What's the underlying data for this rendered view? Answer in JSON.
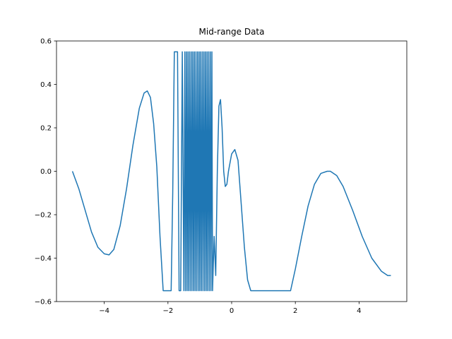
{
  "chart_data": {
    "type": "line",
    "title": "Mid-range Data",
    "xlabel": "",
    "ylabel": "",
    "xlim": [
      -5.5,
      5.5
    ],
    "ylim": [
      -0.6,
      0.6
    ],
    "xticks": [
      -4,
      -2,
      0,
      2,
      4
    ],
    "xtick_labels": [
      "−4",
      "−2",
      "0",
      "2",
      "4"
    ],
    "yticks": [
      -0.6,
      -0.4,
      -0.2,
      0.0,
      0.2,
      0.4,
      0.6
    ],
    "ytick_labels": [
      "−0.6",
      "−0.4",
      "−0.2",
      "0.0",
      "0.2",
      "0.4",
      "0.6"
    ],
    "grid": false,
    "series": [
      {
        "color": "#1f77b4",
        "x": [
          -5.0,
          -4.8,
          -4.6,
          -4.4,
          -4.2,
          -4.0,
          -3.85,
          -3.7,
          -3.5,
          -3.3,
          -3.1,
          -2.9,
          -2.75,
          -2.65,
          -2.55,
          -2.45,
          -2.35,
          -2.25,
          -2.15,
          -2.0,
          -1.9,
          -1.85,
          -1.8,
          -1.75,
          -1.7,
          -1.65,
          -1.6,
          -1.55,
          -1.5,
          -1.47,
          -1.45,
          -1.42,
          -1.4,
          -1.37,
          -1.35,
          -1.32,
          -1.3,
          -1.27,
          -1.25,
          -1.22,
          -1.2,
          -1.17,
          -1.15,
          -1.12,
          -1.1,
          -1.07,
          -1.05,
          -1.02,
          -1.0,
          -0.97,
          -0.95,
          -0.92,
          -0.9,
          -0.87,
          -0.85,
          -0.82,
          -0.8,
          -0.77,
          -0.75,
          -0.72,
          -0.7,
          -0.67,
          -0.65,
          -0.62,
          -0.6,
          -0.55,
          -0.5,
          -0.45,
          -0.4,
          -0.35,
          -0.3,
          -0.25,
          -0.2,
          -0.15,
          -0.1,
          0.0,
          0.1,
          0.2,
          0.3,
          0.4,
          0.5,
          0.6,
          0.7,
          1.0,
          1.5,
          1.85,
          2.0,
          2.2,
          2.4,
          2.6,
          2.8,
          3.0,
          3.1,
          3.3,
          3.5,
          3.8,
          4.1,
          4.4,
          4.7,
          4.9,
          5.0
        ],
        "y": [
          0.0,
          -0.08,
          -0.18,
          -0.28,
          -0.35,
          -0.38,
          -0.385,
          -0.36,
          -0.25,
          -0.08,
          0.12,
          0.29,
          0.36,
          0.37,
          0.34,
          0.22,
          0.02,
          -0.3,
          -0.55,
          -0.55,
          -0.55,
          -0.1,
          0.55,
          0.55,
          0.55,
          -0.55,
          -0.55,
          0.55,
          -0.55,
          0.55,
          -0.55,
          0.55,
          -0.55,
          0.55,
          -0.55,
          0.55,
          -0.55,
          0.55,
          -0.55,
          0.55,
          -0.55,
          0.55,
          -0.55,
          0.55,
          -0.55,
          0.55,
          -0.55,
          0.55,
          -0.55,
          0.55,
          -0.55,
          0.55,
          -0.55,
          0.55,
          -0.55,
          0.55,
          -0.55,
          0.55,
          -0.55,
          0.55,
          -0.55,
          0.55,
          -0.55,
          0.55,
          -0.55,
          -0.3,
          -0.48,
          0.0,
          0.3,
          0.33,
          0.2,
          0.0,
          -0.07,
          -0.06,
          0.0,
          0.08,
          0.1,
          0.05,
          -0.15,
          -0.35,
          -0.5,
          -0.55,
          -0.55,
          -0.55,
          -0.55,
          -0.55,
          -0.45,
          -0.3,
          -0.16,
          -0.06,
          -0.01,
          0.0,
          0.0,
          -0.02,
          -0.07,
          -0.18,
          -0.3,
          -0.4,
          -0.46,
          -0.48,
          -0.48
        ]
      }
    ]
  }
}
